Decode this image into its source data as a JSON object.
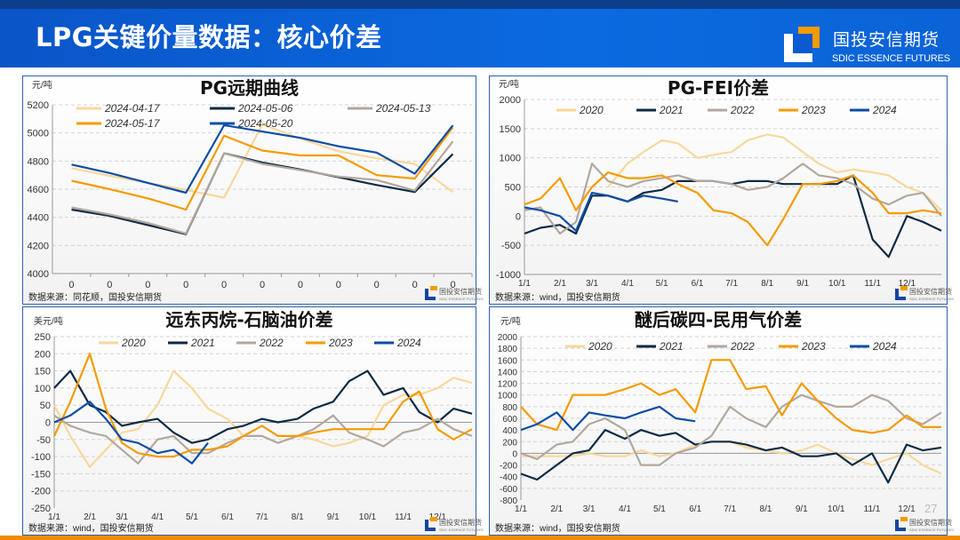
{
  "header": {
    "title": "LPG关键价量数据：核心价差",
    "logo_cn": "国投安信期货",
    "logo_en": "SDIC ESSENCE FUTURES"
  },
  "page_number": "27",
  "colors": {
    "2020": "#f8d89c",
    "2021": "#0e2a44",
    "2022": "#b3a79d",
    "2023": "#f59b00",
    "2024": "#0c4da6",
    "05-06": "#0e2a44",
    "04-17": "#f8d89c",
    "05-13": "#b3a79d",
    "05-17": "#f59b00",
    "05-20": "#0c4da6"
  },
  "chart_data": [
    {
      "type": "line",
      "title": "PG远期曲线",
      "unit": "元/吨",
      "source": "数据来源：同花顺，国投安信期货",
      "ylim": [
        4000,
        5200
      ],
      "yticks": [
        4000,
        4200,
        4400,
        4600,
        4800,
        5000,
        5200
      ],
      "grid": true,
      "legend": "top",
      "categories": [
        "0",
        "0",
        "0",
        "0",
        "0",
        "0",
        "0",
        "0",
        "0",
        "0",
        "0"
      ],
      "series": [
        {
          "name": "2024-04-17",
          "values": [
            4750,
            4695,
            4645,
            4595,
            4540,
            5060,
            4960,
            4870,
            4820,
            4780,
            4580
          ]
        },
        {
          "name": "2024-05-06",
          "values": [
            4455,
            4410,
            4345,
            4280,
            4855,
            4790,
            4740,
            4685,
            4630,
            4580,
            4850
          ]
        },
        {
          "name": "2024-05-13",
          "values": [
            4470,
            4420,
            4360,
            4285,
            4855,
            4780,
            4735,
            4690,
            4665,
            4590,
            4940
          ]
        },
        {
          "name": "2024-05-17",
          "values": [
            4660,
            4600,
            4535,
            4455,
            4980,
            4875,
            4840,
            4840,
            4700,
            4675,
            5040
          ]
        },
        {
          "name": "2024-05-20",
          "values": [
            4775,
            4715,
            4645,
            4575,
            5055,
            5010,
            4965,
            4905,
            4860,
            4710,
            5055
          ]
        }
      ]
    },
    {
      "type": "line",
      "title": "PG-FEI价差",
      "unit": "元/吨",
      "source": "数据来源：wind，国投安信期货",
      "ylim": [
        -1000,
        2000
      ],
      "yticks": [
        -1000,
        -500,
        0,
        500,
        1000,
        1500,
        2000
      ],
      "grid": true,
      "legend": "top",
      "xticks": [
        "1/1",
        "2/1",
        "3/1",
        "4/1",
        "5/1",
        "6/1",
        "7/1",
        "8/1",
        "9/1",
        "10/1",
        "11/1",
        "12/1"
      ],
      "x": [
        "01-01",
        "01-15",
        "02-01",
        "02-15",
        "03-01",
        "03-15",
        "04-01",
        "04-15",
        "05-01",
        "05-15",
        "06-01",
        "06-15",
        "07-01",
        "07-15",
        "08-01",
        "08-15",
        "09-01",
        "09-15",
        "10-01",
        "10-15",
        "11-01",
        "11-15",
        "12-01",
        "12-15",
        "12-31"
      ],
      "series": [
        {
          "name": "2020",
          "values": [
            null,
            null,
            null,
            null,
            null,
            500,
            900,
            1100,
            1300,
            1250,
            1000,
            1050,
            1100,
            1300,
            1400,
            1350,
            1100,
            900,
            750,
            800,
            750,
            700,
            500,
            400,
            100
          ]
        },
        {
          "name": "2021",
          "values": [
            -300,
            -200,
            -150,
            -300,
            350,
            350,
            250,
            400,
            450,
            600,
            600,
            600,
            550,
            600,
            600,
            550,
            550,
            550,
            550,
            700,
            -400,
            -700,
            0,
            -100,
            -250
          ]
        },
        {
          "name": "2022",
          "values": [
            100,
            150,
            -300,
            -100,
            900,
            600,
            500,
            600,
            650,
            700,
            600,
            600,
            550,
            450,
            500,
            650,
            900,
            700,
            650,
            550,
            300,
            200,
            350,
            400,
            0
          ]
        },
        {
          "name": "2023",
          "values": [
            200,
            300,
            650,
            100,
            500,
            750,
            650,
            650,
            700,
            550,
            400,
            100,
            50,
            -100,
            -500,
            -50,
            550,
            550,
            600,
            700,
            400,
            50,
            50,
            100,
            50
          ]
        },
        {
          "name": "2024",
          "values": [
            150,
            100,
            0,
            -250,
            400,
            350,
            250,
            350,
            300,
            250,
            null,
            null,
            null,
            null,
            null,
            null,
            null,
            null,
            null,
            null,
            null,
            null,
            null,
            null,
            null
          ]
        }
      ]
    },
    {
      "type": "line",
      "title": "远东丙烷-石脑油价差",
      "unit": "美元/吨",
      "source": "数据来源：wind，国投安信期货",
      "ylim": [
        -250,
        250
      ],
      "yticks": [
        -250,
        -200,
        -150,
        -100,
        -50,
        0,
        50,
        100,
        150,
        200,
        250
      ],
      "grid": true,
      "legend": "top",
      "xticks": [
        "1/1",
        "2/1",
        "3/1",
        "4/1",
        "5/1",
        "6/1",
        "7/1",
        "8/1",
        "9/1",
        "10/1",
        "11/1",
        "12/1"
      ],
      "x": [
        "01-01",
        "01-15",
        "02-01",
        "02-15",
        "03-01",
        "03-15",
        "04-01",
        "04-15",
        "05-01",
        "05-15",
        "06-01",
        "06-15",
        "07-01",
        "07-15",
        "08-01",
        "08-15",
        "09-01",
        "09-15",
        "10-01",
        "10-15",
        "11-01",
        "11-15",
        "12-01",
        "12-15",
        "12-31"
      ],
      "series": [
        {
          "name": "2020",
          "values": [
            50,
            -40,
            -130,
            -80,
            -30,
            -20,
            50,
            150,
            100,
            40,
            10,
            -40,
            -40,
            -60,
            -40,
            -50,
            -70,
            -60,
            -40,
            50,
            80,
            80,
            100,
            130,
            115
          ]
        },
        {
          "name": "2021",
          "values": [
            100,
            150,
            50,
            30,
            -10,
            0,
            10,
            -30,
            -60,
            -50,
            -20,
            -10,
            10,
            0,
            10,
            40,
            60,
            120,
            150,
            80,
            100,
            30,
            0,
            40,
            25
          ]
        },
        {
          "name": "2022",
          "values": [
            20,
            -10,
            -30,
            -40,
            -80,
            -120,
            -50,
            -40,
            -90,
            -90,
            -60,
            -40,
            -40,
            -60,
            -40,
            -20,
            20,
            -30,
            -50,
            -70,
            -30,
            -20,
            10,
            -20,
            -40
          ]
        },
        {
          "name": "2023",
          "values": [
            -40,
            60,
            200,
            40,
            -60,
            -90,
            -100,
            -100,
            -80,
            -80,
            -70,
            -40,
            -10,
            -40,
            -40,
            -30,
            -20,
            -20,
            -20,
            -20,
            60,
            90,
            -20,
            -50,
            -20
          ]
        },
        {
          "name": "2024",
          "values": [
            0,
            20,
            60,
            10,
            -50,
            -60,
            -90,
            -80,
            -120,
            -60,
            null,
            null,
            null,
            null,
            null,
            null,
            null,
            null,
            null,
            null,
            null,
            null,
            null,
            null,
            null
          ]
        }
      ]
    },
    {
      "type": "line",
      "title": "醚后碳四-民用气价差",
      "unit": "元/吨",
      "source": "数据来源：wind，国投安信期货",
      "ylim": [
        -800,
        2000
      ],
      "yticks": [
        -800,
        -600,
        -400,
        -200,
        0,
        200,
        400,
        600,
        800,
        1000,
        1200,
        1400,
        1600,
        1800,
        2000
      ],
      "grid": true,
      "legend": "top",
      "xticks": [
        "1/1",
        "2/1",
        "3/1",
        "4/1",
        "5/1",
        "6/1",
        "7/1",
        "8/1",
        "9/1",
        "10/1",
        "11/1",
        "12/1"
      ],
      "x": [
        "01-01",
        "01-15",
        "02-01",
        "02-15",
        "03-01",
        "03-15",
        "04-01",
        "04-15",
        "05-01",
        "05-15",
        "06-01",
        "06-15",
        "07-01",
        "07-15",
        "08-01",
        "08-15",
        "09-01",
        "09-15",
        "10-01",
        "10-15",
        "11-01",
        "11-15",
        "12-01",
        "12-15",
        "12-31"
      ],
      "series": [
        {
          "name": "2020",
          "values": [
            -50,
            -50,
            -50,
            -50,
            0,
            -50,
            -50,
            50,
            -50,
            0,
            150,
            200,
            200,
            100,
            50,
            0,
            50,
            150,
            0,
            -100,
            -200,
            -100,
            0,
            -200,
            -350
          ]
        },
        {
          "name": "2021",
          "values": [
            -350,
            -450,
            -200,
            0,
            50,
            400,
            250,
            400,
            300,
            350,
            150,
            200,
            200,
            150,
            50,
            100,
            -50,
            -50,
            0,
            -200,
            0,
            -500,
            150,
            50,
            100
          ]
        },
        {
          "name": "2022",
          "values": [
            0,
            -100,
            150,
            200,
            500,
            600,
            400,
            -200,
            -200,
            0,
            100,
            300,
            800,
            600,
            450,
            800,
            1000,
            900,
            800,
            800,
            1000,
            900,
            600,
            500,
            700
          ]
        },
        {
          "name": "2023",
          "values": [
            800,
            500,
            400,
            1000,
            1000,
            1000,
            1100,
            1200,
            1000,
            1100,
            700,
            1600,
            1600,
            1100,
            1150,
            650,
            1200,
            900,
            600,
            400,
            350,
            400,
            650,
            450,
            450
          ]
        },
        {
          "name": "2024",
          "values": [
            400,
            500,
            700,
            400,
            700,
            650,
            600,
            700,
            800,
            600,
            550,
            null,
            null,
            null,
            null,
            null,
            null,
            null,
            null,
            null,
            null,
            null,
            null,
            null,
            null
          ]
        }
      ]
    }
  ]
}
